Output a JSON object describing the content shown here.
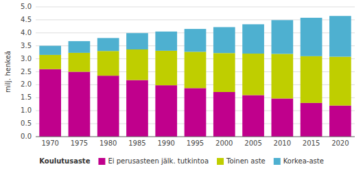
{
  "chart_data": {
    "type": "bar",
    "stacked": true,
    "ylabel": "milj. henkeä",
    "categories": [
      "1970",
      "1975",
      "1980",
      "1985",
      "1990",
      "1995",
      "2000",
      "2005",
      "2010",
      "2015",
      "2020"
    ],
    "series": [
      {
        "name": "Ei perusasteen jälk. tutkintoa",
        "color": "#C0008C",
        "values": [
          2.6,
          2.5,
          2.35,
          2.18,
          1.98,
          1.87,
          1.72,
          1.6,
          1.47,
          1.3,
          1.2
        ]
      },
      {
        "name": "Toinen aste",
        "color": "#BFCE00",
        "values": [
          0.55,
          0.73,
          0.95,
          1.18,
          1.33,
          1.4,
          1.5,
          1.6,
          1.72,
          1.8,
          1.88
        ]
      },
      {
        "name": "Korkea-aste",
        "color": "#4EB0D0",
        "values": [
          0.35,
          0.45,
          0.5,
          0.63,
          0.74,
          0.88,
          1.0,
          1.13,
          1.3,
          1.48,
          1.57
        ]
      }
    ],
    "legend_title": "Koulutusaste",
    "ylim": [
      0.0,
      5.0
    ],
    "yticks": [
      {
        "value": 0,
        "label": "0.0"
      },
      0.5,
      {
        "value": 1,
        "label": "1.0"
      },
      1.5,
      {
        "value": 2,
        "label": "2.0"
      },
      2.5,
      {
        "value": 3,
        "label": "3.0"
      },
      3.5,
      {
        "value": 4,
        "label": "4.0"
      },
      4.5,
      {
        "value": 5,
        "label": "5.0"
      }
    ],
    "grid": true,
    "legend": "bottom"
  }
}
